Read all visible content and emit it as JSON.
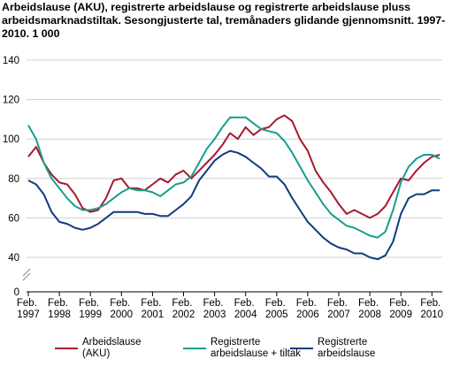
{
  "chart_data": {
    "type": "line",
    "title": "Arbeidslause (AKU), registrerte arbeidslause og registrerte arbeidslause pluss arbeidsmarknadstiltak. Sesongjusterte tal, tremånaders glidande gjennomsnitt. 1997-2010. 1 000",
    "categories": [
      "Feb. 1997",
      null,
      null,
      null,
      "Feb. 1998",
      null,
      null,
      null,
      "Feb. 1999",
      null,
      null,
      null,
      "Feb. 2000",
      null,
      null,
      null,
      "Feb. 2001",
      null,
      null,
      null,
      "Feb. 2002",
      null,
      null,
      null,
      "Feb. 2003",
      null,
      null,
      null,
      "Feb. 2004",
      null,
      null,
      null,
      "Feb. 2005",
      null,
      null,
      null,
      "Feb. 2006",
      null,
      null,
      null,
      "Feb. 2007",
      null,
      null,
      null,
      "Feb. 2008",
      null,
      null,
      null,
      "Feb. 2009",
      null,
      null,
      null,
      "Feb. 2010",
      null
    ],
    "series": [
      {
        "name": "Arbeidslause (AKU)",
        "color": "#a6192e",
        "values": [
          91,
          96,
          88,
          82,
          78,
          77,
          72,
          65,
          63,
          64,
          70,
          79,
          80,
          75,
          75,
          74,
          77,
          80,
          78,
          82,
          84,
          80,
          84,
          88,
          92,
          97,
          103,
          100,
          106,
          102,
          105,
          106,
          110,
          112,
          109,
          100,
          94,
          84,
          78,
          73,
          67,
          62,
          64,
          62,
          60,
          62,
          66,
          73,
          80,
          79,
          84,
          88,
          91,
          92
        ]
      },
      {
        "name": "Registrerte arbeidslause + tiltak",
        "color": "#1a9c8c",
        "values": [
          107,
          100,
          88,
          80,
          75,
          70,
          66,
          64,
          64,
          65,
          67,
          70,
          73,
          75,
          74,
          74,
          73,
          71,
          74,
          77,
          78,
          81,
          88,
          95,
          100,
          106,
          111,
          111,
          111,
          108,
          105,
          104,
          103,
          99,
          93,
          86,
          79,
          73,
          67,
          62,
          59,
          56,
          55,
          53,
          51,
          50,
          53,
          64,
          78,
          86,
          90,
          92,
          92,
          90
        ]
      },
      {
        "name": "Registrerte arbeidslause",
        "color": "#0f3b7f",
        "values": [
          79,
          77,
          72,
          63,
          58,
          57,
          55,
          54,
          55,
          57,
          60,
          63,
          63,
          63,
          63,
          62,
          62,
          61,
          61,
          64,
          67,
          71,
          79,
          84,
          89,
          92,
          94,
          93,
          91,
          88,
          85,
          81,
          81,
          77,
          70,
          64,
          58,
          54,
          50,
          47,
          45,
          44,
          42,
          42,
          40,
          39,
          41,
          48,
          62,
          70,
          72,
          72,
          74,
          74
        ]
      }
    ],
    "ylim": [
      0,
      140
    ],
    "yticks": [
      0,
      40,
      60,
      80,
      100,
      120,
      140
    ],
    "grid": true
  }
}
